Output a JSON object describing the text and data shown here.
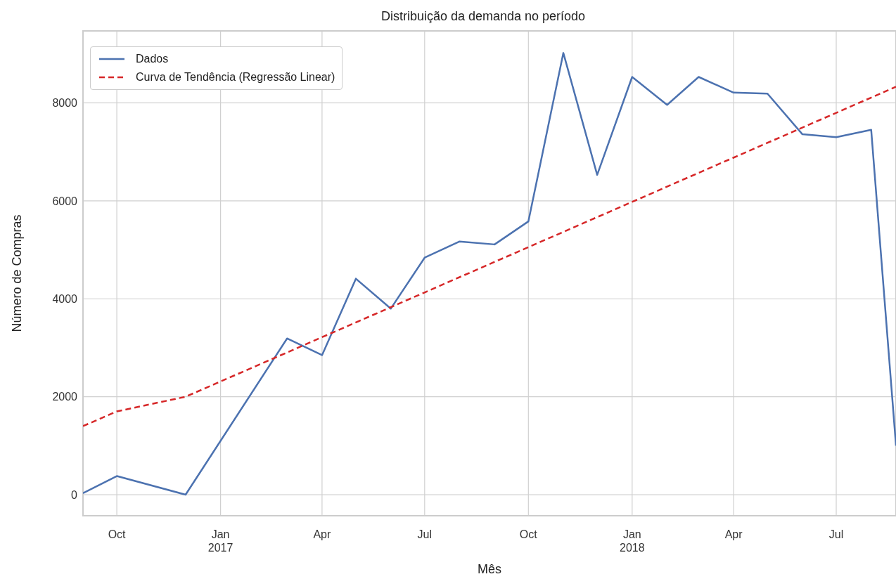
{
  "chart_data": {
    "type": "line",
    "title": "Distribuição da demanda no período",
    "xlabel": "Mês",
    "ylabel": "Número de Compras",
    "xlim": [
      "2016-09-01",
      "2018-08-23"
    ],
    "ylim": [
      -430,
      9470
    ],
    "xticks": [
      {
        "value": "2016-10-01",
        "label": "Oct"
      },
      {
        "value": "2017-01-01",
        "label": "Jan\n2017"
      },
      {
        "value": "2017-04-01",
        "label": "Apr"
      },
      {
        "value": "2017-07-01",
        "label": "Jul"
      },
      {
        "value": "2017-10-01",
        "label": "Oct"
      },
      {
        "value": "2018-01-01",
        "label": "Jan\n2018"
      },
      {
        "value": "2018-04-01",
        "label": "Apr"
      },
      {
        "value": "2018-07-01",
        "label": "Jul"
      }
    ],
    "yticks": [
      0,
      2000,
      4000,
      6000,
      8000
    ],
    "grid": true,
    "legend": "top left",
    "marker": "none",
    "series": [
      {
        "name": "Dados",
        "color": "#4c72b0",
        "line_style": "solid",
        "x": [
          "2016-09-01",
          "2016-10-01",
          "2016-12-01",
          "2017-03-01",
          "2017-04-01",
          "2017-05-01",
          "2017-06-01",
          "2017-07-01",
          "2017-08-01",
          "2017-09-01",
          "2017-10-01",
          "2017-11-01",
          "2017-12-01",
          "2018-01-01",
          "2018-02-01",
          "2018-03-01",
          "2018-04-01",
          "2018-05-01",
          "2018-06-01",
          "2018-07-01",
          "2018-08-01",
          "2018-08-23"
        ],
        "values": [
          30,
          380,
          0,
          3190,
          2850,
          4410,
          3800,
          4840,
          5170,
          5110,
          5580,
          9020,
          6530,
          8530,
          7960,
          8530,
          8210,
          8190,
          7360,
          7300,
          7450,
          1000
        ]
      },
      {
        "name": "Curva de Tendência (Regressão Linear)",
        "color": "#d62728",
        "line_style": "dashed",
        "x": [
          "2016-09-01",
          "2016-10-01",
          "2016-12-01",
          "2018-08-23"
        ],
        "values": [
          1400,
          1700,
          2000,
          8330
        ]
      }
    ]
  }
}
